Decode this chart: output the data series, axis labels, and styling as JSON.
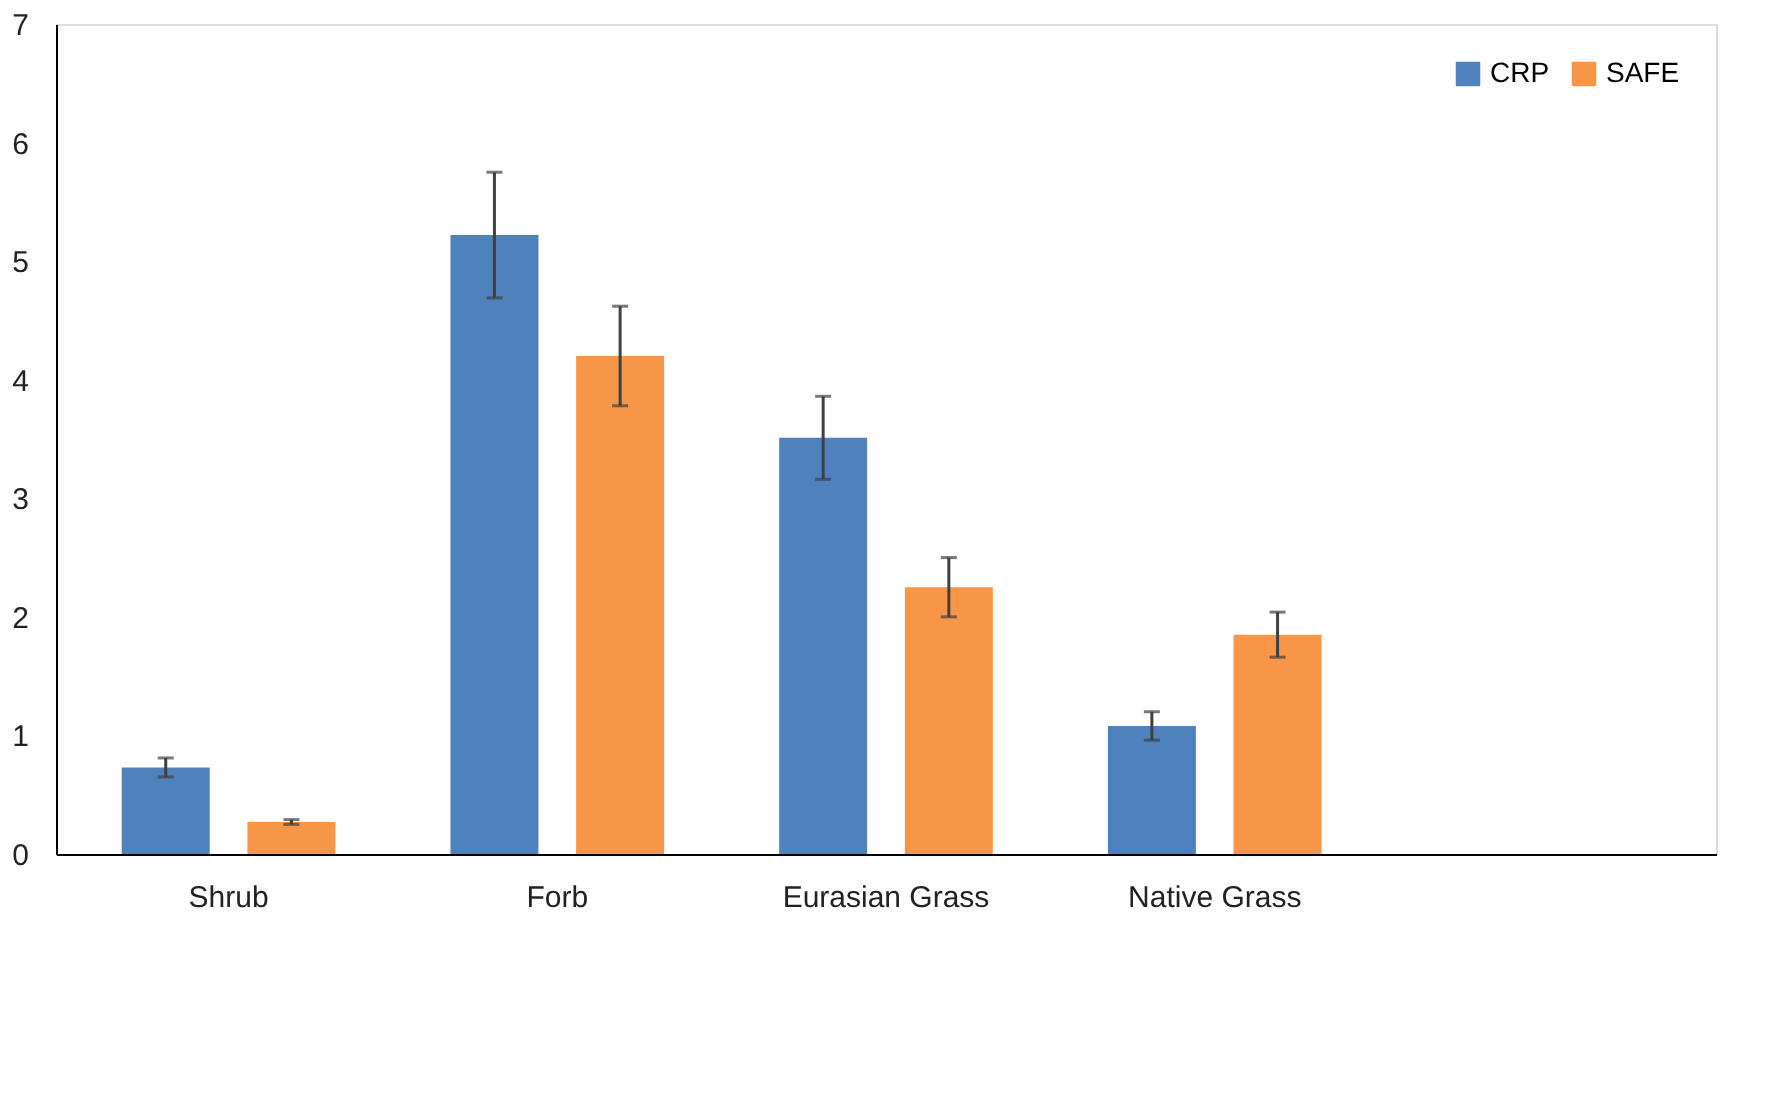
{
  "chart_data": {
    "type": "bar",
    "categories": [
      "Shrub",
      "Forb",
      "Eurasian Grass",
      "Native Grass",
      null
    ],
    "series": [
      {
        "name": "CRP",
        "color": "#4f81bd",
        "values": [
          0.73,
          5.22,
          3.51,
          1.08,
          null
        ],
        "errors": [
          0.08,
          0.53,
          0.35,
          0.12,
          null
        ]
      },
      {
        "name": "SAFE",
        "color": "#f79646",
        "values": [
          0.27,
          4.2,
          2.25,
          1.85,
          null
        ],
        "errors": [
          0.02,
          0.42,
          0.25,
          0.19,
          null
        ]
      }
    ],
    "ylim": [
      0,
      7
    ],
    "yticks": [
      0,
      1,
      2,
      3,
      4,
      5,
      6,
      7
    ],
    "grid": false,
    "legend": "top right"
  }
}
